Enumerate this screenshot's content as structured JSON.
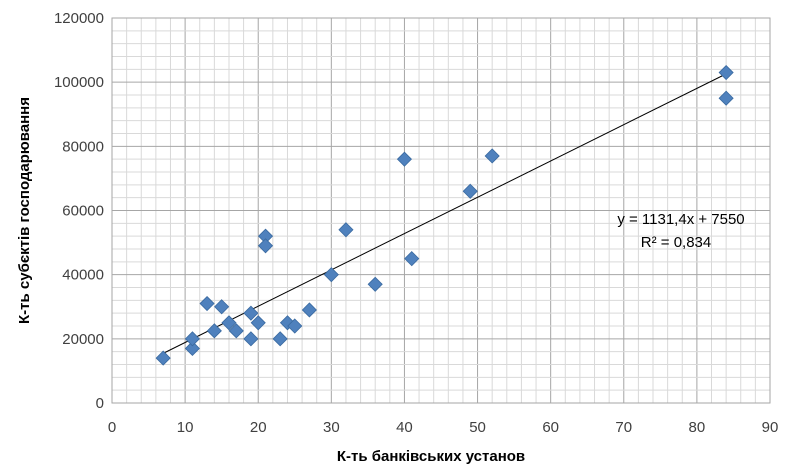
{
  "chart_data": {
    "type": "scatter",
    "xlabel": "К-ть банківських установ",
    "ylabel": "К-ть субєктів господарювання",
    "xlim": [
      0,
      90
    ],
    "ylim": [
      0,
      120000
    ],
    "x_major_ticks": [
      0,
      10,
      20,
      30,
      40,
      50,
      60,
      70,
      80,
      90
    ],
    "y_major_ticks": [
      0,
      20000,
      40000,
      60000,
      80000,
      100000,
      120000
    ],
    "x_tick_labels": [
      "0",
      "10",
      "20",
      "30",
      "40",
      "50",
      "60",
      "70",
      "80",
      "90"
    ],
    "y_tick_labels": [
      "0",
      "20000",
      "40000",
      "60000",
      "80000",
      "100000",
      "120000"
    ],
    "grid": "major and minor",
    "marker": "diamond",
    "colors": {
      "points": "#4f81bd",
      "points_edge": "#3a6aa0",
      "trendline": "#000000",
      "grid": "#bfbfbf"
    },
    "points": [
      {
        "x": 7,
        "y": 14000
      },
      {
        "x": 11,
        "y": 17000
      },
      {
        "x": 11,
        "y": 20000
      },
      {
        "x": 13,
        "y": 31000
      },
      {
        "x": 14,
        "y": 22500
      },
      {
        "x": 15,
        "y": 30000
      },
      {
        "x": 16,
        "y": 25000
      },
      {
        "x": 17,
        "y": 22500
      },
      {
        "x": 19,
        "y": 28000
      },
      {
        "x": 19,
        "y": 20000
      },
      {
        "x": 20,
        "y": 25000
      },
      {
        "x": 21,
        "y": 52000
      },
      {
        "x": 21,
        "y": 49000
      },
      {
        "x": 23,
        "y": 20000
      },
      {
        "x": 24,
        "y": 25000
      },
      {
        "x": 25,
        "y": 24000
      },
      {
        "x": 27,
        "y": 29000
      },
      {
        "x": 30,
        "y": 40000
      },
      {
        "x": 32,
        "y": 54000
      },
      {
        "x": 36,
        "y": 37000
      },
      {
        "x": 40,
        "y": 76000
      },
      {
        "x": 41,
        "y": 45000
      },
      {
        "x": 49,
        "y": 66000
      },
      {
        "x": 52,
        "y": 77000
      },
      {
        "x": 84,
        "y": 103000
      },
      {
        "x": 84,
        "y": 95000
      }
    ],
    "trendline": {
      "slope": 1131.4,
      "intercept": 7550,
      "x_range": [
        7,
        84
      ]
    },
    "equation": "y = 1131,4x + 7550",
    "r_squared": "R² = 0,834"
  }
}
